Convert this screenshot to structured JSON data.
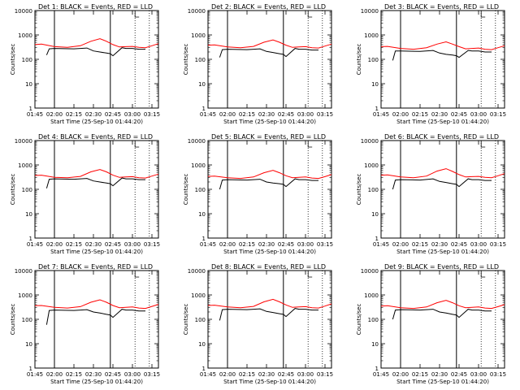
{
  "shared": {
    "ylabel": "Counts/sec",
    "xlabel": "Start Time (25-Sep-10 01:44:20)",
    "y_ticks": [
      "1",
      "10",
      "100",
      "1000",
      "10000"
    ],
    "x_ticks": [
      "01:45",
      "02:00",
      "02:15",
      "02:30",
      "02:45",
      "03:00",
      "03:15"
    ],
    "colors": {
      "events": "#000000",
      "lld": "#ff0000"
    }
  },
  "chart_data": [
    {
      "type": "line",
      "title": "Det 1: BLACK = Events, RED = LLD",
      "xlabel": "Start Time (25-Sep-10 01:44:20)",
      "ylabel": "Counts/sec",
      "y_scale": "log",
      "ylim": [
        1,
        10000
      ],
      "xlim": [
        "01:45",
        "03:20"
      ],
      "vertical_lines": {
        "solid": [
          "02:00",
          "02:43"
        ],
        "dotted": [
          "03:02",
          "03:13"
        ]
      },
      "series": [
        {
          "name": "BLACK = Events",
          "color": "#000000",
          "x": [
            "01:54",
            "01:56",
            "02:00",
            "02:15",
            "02:25",
            "02:30",
            "02:35",
            "02:40",
            "02:43",
            "02:45",
            "02:52",
            "02:55",
            "03:00",
            "03:05",
            "03:10"
          ],
          "y": [
            150,
            270,
            280,
            270,
            290,
            220,
            200,
            180,
            170,
            140,
            300,
            280,
            280,
            260,
            260
          ]
        },
        {
          "name": "RED = LLD",
          "color": "#ff0000",
          "x": [
            "01:45",
            "01:50",
            "02:00",
            "02:10",
            "02:20",
            "02:28",
            "02:35",
            "02:40",
            "02:45",
            "02:50",
            "02:55",
            "03:00",
            "03:05",
            "03:10",
            "03:15",
            "03:20"
          ],
          "y": [
            400,
            420,
            330,
            310,
            360,
            550,
            700,
            550,
            400,
            320,
            330,
            340,
            310,
            300,
            360,
            440
          ]
        }
      ]
    },
    {
      "type": "line",
      "title": "Det 2: BLACK = Events, RED = LLD",
      "xlabel": "Start Time (25-Sep-10 01:44:20)",
      "ylabel": "Counts/sec",
      "y_scale": "log",
      "ylim": [
        1,
        10000
      ],
      "xlim": [
        "01:45",
        "03:20"
      ],
      "vertical_lines": {
        "solid": [
          "02:00",
          "02:43"
        ],
        "dotted": [
          "03:02",
          "03:13"
        ]
      },
      "series": [
        {
          "name": "BLACK = Events",
          "color": "#000000",
          "x": [
            "01:54",
            "01:56",
            "02:00",
            "02:15",
            "02:25",
            "02:30",
            "02:35",
            "02:40",
            "02:43",
            "02:45",
            "02:52",
            "02:55",
            "03:00",
            "03:05",
            "03:10"
          ],
          "y": [
            120,
            250,
            260,
            250,
            270,
            210,
            190,
            170,
            160,
            130,
            280,
            260,
            260,
            240,
            240
          ]
        },
        {
          "name": "RED = LLD",
          "color": "#ff0000",
          "x": [
            "01:45",
            "01:50",
            "02:00",
            "02:10",
            "02:20",
            "02:28",
            "02:35",
            "02:40",
            "02:45",
            "02:50",
            "02:55",
            "03:00",
            "03:05",
            "03:10",
            "03:15",
            "03:20"
          ],
          "y": [
            380,
            390,
            320,
            300,
            340,
            500,
            620,
            500,
            380,
            310,
            320,
            330,
            300,
            290,
            350,
            420
          ]
        }
      ]
    },
    {
      "type": "line",
      "title": "Det 3: BLACK = Events, RED = LLD",
      "xlabel": "Start Time (25-Sep-10 01:44:20)",
      "ylabel": "Counts/sec",
      "y_scale": "log",
      "ylim": [
        1,
        10000
      ],
      "xlim": [
        "01:45",
        "03:20"
      ],
      "vertical_lines": {
        "solid": [
          "02:00",
          "02:43"
        ],
        "dotted": [
          "03:02",
          "03:13"
        ]
      },
      "series": [
        {
          "name": "BLACK = Events",
          "color": "#000000",
          "x": [
            "01:54",
            "01:56",
            "02:00",
            "02:15",
            "02:25",
            "02:30",
            "02:35",
            "02:40",
            "02:43",
            "02:45",
            "02:52",
            "02:55",
            "03:00",
            "03:05",
            "03:10"
          ],
          "y": [
            90,
            220,
            220,
            210,
            230,
            180,
            160,
            150,
            140,
            120,
            230,
            220,
            220,
            200,
            200
          ]
        },
        {
          "name": "RED = LLD",
          "color": "#ff0000",
          "x": [
            "01:45",
            "01:50",
            "02:00",
            "02:10",
            "02:20",
            "02:28",
            "02:35",
            "02:40",
            "02:45",
            "02:50",
            "02:55",
            "03:00",
            "03:05",
            "03:10",
            "03:15",
            "03:20"
          ],
          "y": [
            330,
            340,
            280,
            260,
            300,
            420,
            520,
            420,
            330,
            270,
            280,
            290,
            260,
            250,
            300,
            360
          ]
        }
      ]
    },
    {
      "type": "line",
      "title": "Det 4: BLACK = Events, RED = LLD",
      "xlabel": "Start Time (25-Sep-10 01:44:20)",
      "ylabel": "Counts/sec",
      "y_scale": "log",
      "ylim": [
        1,
        10000
      ],
      "xlim": [
        "01:45",
        "03:20"
      ],
      "vertical_lines": {
        "solid": [
          "02:00",
          "02:43"
        ],
        "dotted": [
          "03:02",
          "03:13"
        ]
      },
      "series": [
        {
          "name": "BLACK = Events",
          "color": "#000000",
          "x": [
            "01:54",
            "01:56",
            "02:00",
            "02:15",
            "02:25",
            "02:30",
            "02:35",
            "02:40",
            "02:43",
            "02:45",
            "02:52",
            "02:55",
            "03:00",
            "03:05",
            "03:10"
          ],
          "y": [
            110,
            260,
            270,
            260,
            280,
            220,
            200,
            180,
            170,
            140,
            290,
            270,
            270,
            250,
            250
          ]
        },
        {
          "name": "RED = LLD",
          "color": "#ff0000",
          "x": [
            "01:45",
            "01:50",
            "02:00",
            "02:10",
            "02:20",
            "02:28",
            "02:35",
            "02:40",
            "02:45",
            "02:50",
            "02:55",
            "03:00",
            "03:05",
            "03:10",
            "03:15",
            "03:20"
          ],
          "y": [
            370,
            380,
            310,
            300,
            340,
            520,
            650,
            520,
            380,
            310,
            320,
            330,
            300,
            290,
            350,
            420
          ]
        }
      ]
    },
    {
      "type": "line",
      "title": "Det 5: BLACK = Events, RED = LLD",
      "xlabel": "Start Time (25-Sep-10 01:44:20)",
      "ylabel": "Counts/sec",
      "y_scale": "log",
      "ylim": [
        1,
        10000
      ],
      "xlim": [
        "01:45",
        "03:20"
      ],
      "vertical_lines": {
        "solid": [
          "02:00",
          "02:43"
        ],
        "dotted": [
          "03:02",
          "03:13"
        ]
      },
      "series": [
        {
          "name": "BLACK = Events",
          "color": "#000000",
          "x": [
            "01:54",
            "01:56",
            "02:00",
            "02:15",
            "02:25",
            "02:30",
            "02:35",
            "02:40",
            "02:43",
            "02:45",
            "02:52",
            "02:55",
            "03:00",
            "03:05",
            "03:10"
          ],
          "y": [
            100,
            240,
            250,
            240,
            260,
            200,
            180,
            170,
            160,
            130,
            270,
            250,
            250,
            230,
            230
          ]
        },
        {
          "name": "RED = LLD",
          "color": "#ff0000",
          "x": [
            "01:45",
            "01:50",
            "02:00",
            "02:10",
            "02:20",
            "02:28",
            "02:35",
            "02:40",
            "02:45",
            "02:50",
            "02:55",
            "03:00",
            "03:05",
            "03:10",
            "03:15",
            "03:20"
          ],
          "y": [
            340,
            350,
            300,
            280,
            320,
            480,
            600,
            480,
            360,
            300,
            310,
            320,
            290,
            280,
            330,
            400
          ]
        }
      ]
    },
    {
      "type": "line",
      "title": "Det 6: BLACK = Events, RED = LLD",
      "xlabel": "Start Time (25-Sep-10 01:44:20)",
      "ylabel": "Counts/sec",
      "y_scale": "log",
      "ylim": [
        1,
        10000
      ],
      "xlim": [
        "01:45",
        "03:20"
      ],
      "vertical_lines": {
        "solid": [
          "02:00",
          "02:43"
        ],
        "dotted": [
          "03:02",
          "03:13"
        ]
      },
      "series": [
        {
          "name": "BLACK = Events",
          "color": "#000000",
          "x": [
            "01:54",
            "01:56",
            "02:00",
            "02:15",
            "02:25",
            "02:30",
            "02:35",
            "02:40",
            "02:43",
            "02:45",
            "02:52",
            "02:55",
            "03:00",
            "03:05",
            "03:10"
          ],
          "y": [
            100,
            240,
            250,
            240,
            270,
            210,
            190,
            170,
            160,
            130,
            270,
            250,
            250,
            230,
            230
          ]
        },
        {
          "name": "RED = LLD",
          "color": "#ff0000",
          "x": [
            "01:45",
            "01:50",
            "02:00",
            "02:10",
            "02:20",
            "02:28",
            "02:35",
            "02:40",
            "02:45",
            "02:50",
            "02:55",
            "03:00",
            "03:05",
            "03:10",
            "03:15",
            "03:20"
          ],
          "y": [
            380,
            390,
            320,
            300,
            350,
            560,
            700,
            540,
            400,
            320,
            330,
            340,
            310,
            300,
            360,
            440
          ]
        }
      ]
    },
    {
      "type": "line",
      "title": "Det 7: BLACK = Events, RED = LLD",
      "xlabel": "Start Time (25-Sep-10 01:44:20)",
      "ylabel": "Counts/sec",
      "y_scale": "log",
      "ylim": [
        1,
        10000
      ],
      "xlim": [
        "01:45",
        "03:20"
      ],
      "vertical_lines": {
        "solid": [
          "02:00",
          "02:43"
        ],
        "dotted": [
          "03:02",
          "03:13"
        ]
      },
      "series": [
        {
          "name": "BLACK = Events",
          "color": "#000000",
          "x": [
            "01:54",
            "01:56",
            "02:00",
            "02:15",
            "02:25",
            "02:30",
            "02:35",
            "02:40",
            "02:43",
            "02:45",
            "02:52",
            "02:55",
            "03:00",
            "03:05",
            "03:10"
          ],
          "y": [
            60,
            230,
            240,
            230,
            250,
            200,
            180,
            160,
            150,
            120,
            260,
            240,
            240,
            220,
            220
          ]
        },
        {
          "name": "RED = LLD",
          "color": "#ff0000",
          "x": [
            "01:45",
            "01:50",
            "02:00",
            "02:10",
            "02:20",
            "02:28",
            "02:35",
            "02:40",
            "02:45",
            "02:50",
            "02:55",
            "03:00",
            "03:05",
            "03:10",
            "03:15",
            "03:20"
          ],
          "y": [
            360,
            370,
            310,
            290,
            330,
            500,
            630,
            500,
            370,
            300,
            310,
            320,
            290,
            280,
            340,
            410
          ]
        }
      ]
    },
    {
      "type": "line",
      "title": "Det 8: BLACK = Events, RED = LLD",
      "xlabel": "Start Time (25-Sep-10 01:44:20)",
      "ylabel": "Counts/sec",
      "y_scale": "log",
      "ylim": [
        1,
        10000
      ],
      "xlim": [
        "01:45",
        "03:20"
      ],
      "vertical_lines": {
        "solid": [
          "02:00",
          "02:43"
        ],
        "dotted": [
          "03:02",
          "03:13"
        ]
      },
      "series": [
        {
          "name": "BLACK = Events",
          "color": "#000000",
          "x": [
            "01:54",
            "01:56",
            "02:00",
            "02:15",
            "02:25",
            "02:30",
            "02:35",
            "02:40",
            "02:43",
            "02:45",
            "02:52",
            "02:55",
            "03:00",
            "03:05",
            "03:10"
          ],
          "y": [
            90,
            250,
            260,
            250,
            270,
            210,
            190,
            170,
            160,
            130,
            280,
            260,
            260,
            240,
            240
          ]
        },
        {
          "name": "RED = LLD",
          "color": "#ff0000",
          "x": [
            "01:45",
            "01:50",
            "02:00",
            "02:10",
            "02:20",
            "02:28",
            "02:35",
            "02:40",
            "02:45",
            "02:50",
            "02:55",
            "03:00",
            "03:05",
            "03:10",
            "03:15",
            "03:20"
          ],
          "y": [
            370,
            380,
            320,
            300,
            340,
            520,
            660,
            520,
            390,
            310,
            320,
            330,
            300,
            290,
            350,
            430
          ]
        }
      ]
    },
    {
      "type": "line",
      "title": "Det 9: BLACK = Events, RED = LLD",
      "xlabel": "Start Time (25-Sep-10 01:44:20)",
      "ylabel": "Counts/sec",
      "y_scale": "log",
      "ylim": [
        1,
        10000
      ],
      "xlim": [
        "01:45",
        "03:20"
      ],
      "vertical_lines": {
        "solid": [
          "02:00",
          "02:43"
        ],
        "dotted": [
          "03:02",
          "03:13"
        ]
      },
      "series": [
        {
          "name": "BLACK = Events",
          "color": "#000000",
          "x": [
            "01:54",
            "01:56",
            "02:00",
            "02:15",
            "02:25",
            "02:30",
            "02:35",
            "02:40",
            "02:43",
            "02:45",
            "02:52",
            "02:55",
            "03:00",
            "03:05",
            "03:10"
          ],
          "y": [
            100,
            240,
            250,
            240,
            260,
            200,
            180,
            160,
            150,
            120,
            260,
            240,
            240,
            220,
            220
          ]
        },
        {
          "name": "RED = LLD",
          "color": "#ff0000",
          "x": [
            "01:45",
            "01:50",
            "02:00",
            "02:10",
            "02:20",
            "02:28",
            "02:35",
            "02:40",
            "02:45",
            "02:50",
            "02:55",
            "03:00",
            "03:05",
            "03:10",
            "03:15",
            "03:20"
          ],
          "y": [
            350,
            360,
            300,
            280,
            320,
            480,
            600,
            480,
            360,
            300,
            310,
            320,
            290,
            280,
            330,
            400
          ]
        }
      ]
    }
  ]
}
